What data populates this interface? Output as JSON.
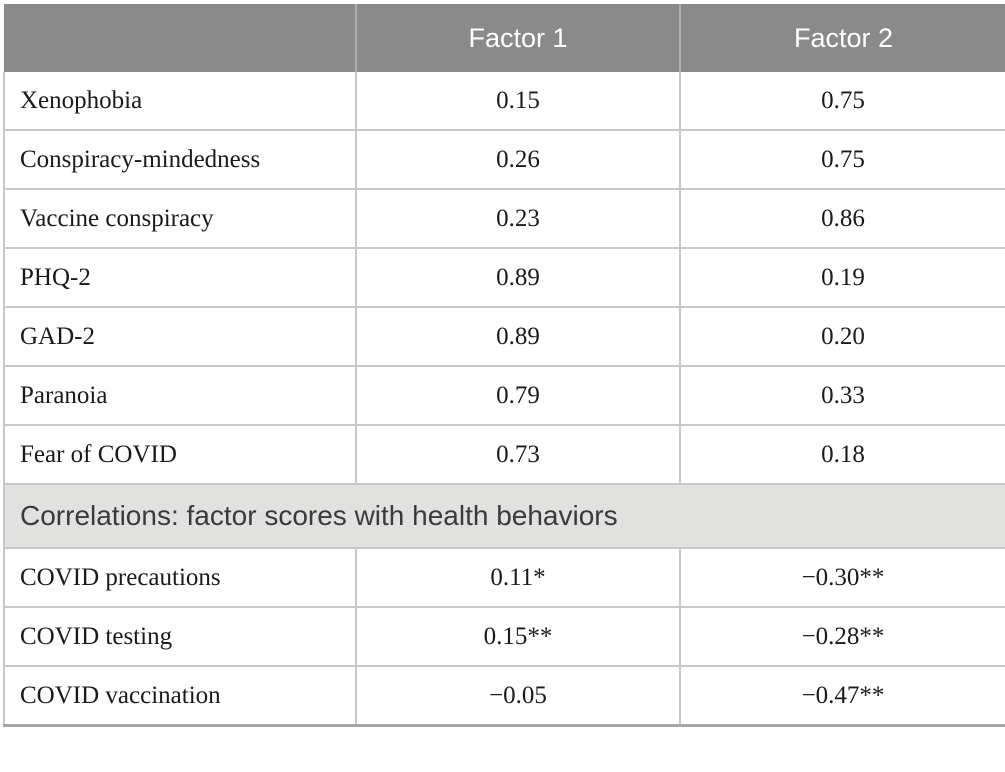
{
  "table": {
    "columns": [
      "",
      "Factor 1",
      "Factor 2"
    ],
    "loadings_rows": [
      {
        "label": "Xenophobia",
        "f1": "0.15",
        "f2": "0.75"
      },
      {
        "label": "Conspiracy-mindedness",
        "f1": "0.26",
        "f2": "0.75"
      },
      {
        "label": "Vaccine conspiracy",
        "f1": "0.23",
        "f2": "0.86"
      },
      {
        "label": "PHQ-2",
        "f1": "0.89",
        "f2": "0.19"
      },
      {
        "label": "GAD-2",
        "f1": "0.89",
        "f2": "0.20"
      },
      {
        "label": "Paranoia",
        "f1": "0.79",
        "f2": "0.33"
      },
      {
        "label": "Fear of COVID",
        "f1": "0.73",
        "f2": "0.18"
      }
    ],
    "section_header": "Correlations: factor scores with health behaviors",
    "correlation_rows": [
      {
        "label": "COVID precautions",
        "f1": "0.11*",
        "f2": "−0.30**"
      },
      {
        "label": "COVID testing",
        "f1": "0.15**",
        "f2": "−0.28**"
      },
      {
        "label": "COVID vaccination",
        "f1": "−0.05",
        "f2": "−0.47**"
      }
    ],
    "colors": {
      "header_bg": "#8a8a8a",
      "header_text": "#ffffff",
      "section_bg": "#e1e1e0",
      "section_text": "#3a3a3a",
      "border": "#c8c8c8",
      "bottom_border": "#a6a6a6",
      "body_text": "#1a1a1a"
    }
  }
}
